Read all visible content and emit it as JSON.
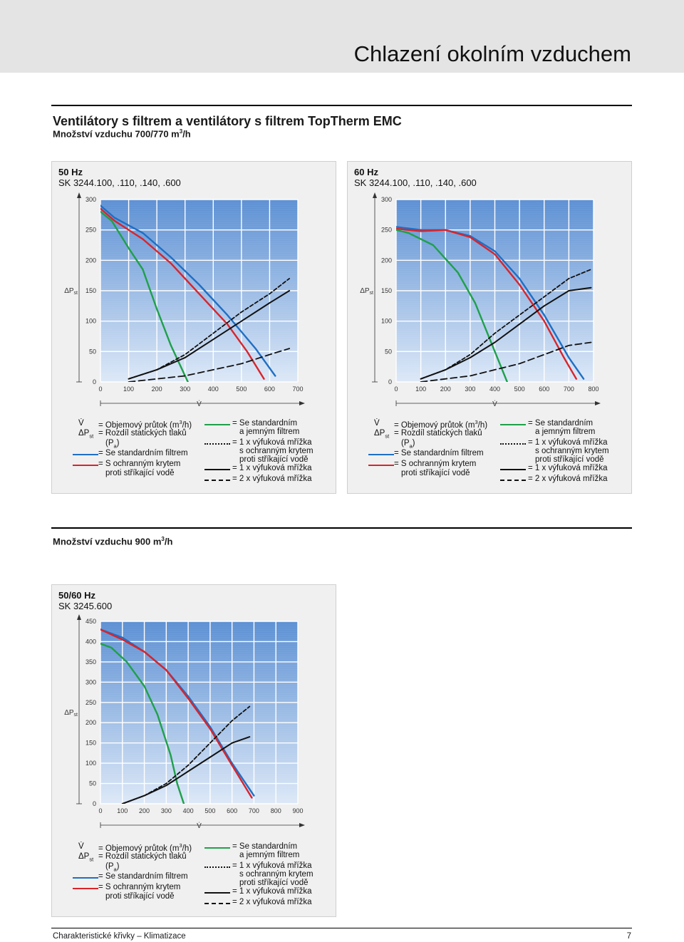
{
  "header": {
    "title": "Chlazení okolním vzduchem"
  },
  "section1": {
    "title": "Ventilátory s filtrem a ventilátory s filtrem TopTherm EMC",
    "subtitle_prefix": "Množství vzduchu 700/770 m",
    "subtitle_sup": "3",
    "subtitle_suffix": "/h"
  },
  "section2": {
    "subtitle_prefix": "Množství vzduchu 900 m",
    "subtitle_sup": "3",
    "subtitle_suffix": "/h"
  },
  "legend": {
    "v_sym": "V̇",
    "v_text_prefix": "= Objemový průtok (m",
    "v_text_sup": "3",
    "v_text_suffix": "/h)",
    "dp_sym_main": "ΔP",
    "dp_sym_sub": "st",
    "dp_text": "= Rozdíl statických tlaků",
    "pa_text_prefix": "(P",
    "pa_text_sub": "a",
    "pa_text_suffix": ")",
    "blue_text": "= Se standardním filtrem",
    "red_text_1": "= S ochranným krytem",
    "red_text_2": "proti stříkající vodě",
    "green_text_1": "= Se standardním",
    "green_text_2": "a jemným filtrem",
    "dotted_text_1": "= 1 x výfuková mřížka",
    "dotted_text_2": "s ochranným krytem",
    "dotted_text_3": "proti stříkající vodě",
    "solid_text": "= 1 x výfuková mřížka",
    "dashed_text": "= 2 x výfuková mřížka"
  },
  "colors": {
    "blue": "#1f6fc5",
    "red": "#d9242b",
    "green": "#1fa04a",
    "black": "#111111",
    "plot_top": "#5b8fd3",
    "plot_bottom": "#dce8f7"
  },
  "footer": {
    "left": "Charakteristické křivky – Klimatizace",
    "right": "7"
  },
  "chart_data": [
    {
      "type": "line",
      "title_line1": "50 Hz",
      "title_line2": "SK 3244.100, .110, .140, .600",
      "xlabel": "V̇",
      "ylabel_main": "ΔP",
      "ylabel_sub": "st",
      "xlim": [
        0,
        700
      ],
      "ylim": [
        0,
        300
      ],
      "xticks": [
        0,
        100,
        200,
        300,
        400,
        500,
        600,
        700
      ],
      "yticks": [
        0,
        50,
        100,
        150,
        200,
        250,
        300
      ],
      "series": [
        {
          "style": "blue",
          "points": [
            [
              0,
              290
            ],
            [
              50,
              270
            ],
            [
              150,
              245
            ],
            [
              250,
              205
            ],
            [
              350,
              160
            ],
            [
              450,
              110
            ],
            [
              550,
              55
            ],
            [
              620,
              10
            ]
          ]
        },
        {
          "style": "red",
          "points": [
            [
              0,
              285
            ],
            [
              50,
              265
            ],
            [
              150,
              235
            ],
            [
              250,
              195
            ],
            [
              350,
              145
            ],
            [
              450,
              95
            ],
            [
              520,
              50
            ],
            [
              580,
              5
            ]
          ]
        },
        {
          "style": "green",
          "points": [
            [
              0,
              280
            ],
            [
              40,
              265
            ],
            [
              100,
              220
            ],
            [
              150,
              185
            ],
            [
              200,
              120
            ],
            [
              250,
              60
            ],
            [
              310,
              0
            ]
          ]
        },
        {
          "style": "dotted",
          "points": [
            [
              100,
              5
            ],
            [
              200,
              20
            ],
            [
              300,
              45
            ],
            [
              400,
              80
            ],
            [
              500,
              115
            ],
            [
              600,
              145
            ],
            [
              670,
              170
            ]
          ]
        },
        {
          "style": "solid",
          "points": [
            [
              100,
              5
            ],
            [
              200,
              20
            ],
            [
              300,
              40
            ],
            [
              400,
              70
            ],
            [
              500,
              100
            ],
            [
              600,
              130
            ],
            [
              670,
              150
            ]
          ]
        },
        {
          "style": "dashed",
          "points": [
            [
              100,
              0
            ],
            [
              200,
              5
            ],
            [
              300,
              10
            ],
            [
              400,
              20
            ],
            [
              500,
              30
            ],
            [
              600,
              45
            ],
            [
              670,
              55
            ]
          ]
        }
      ]
    },
    {
      "type": "line",
      "title_line1": "60 Hz",
      "title_line2": "SK 3244.100, .110, .140, .600",
      "xlabel": "V̇",
      "ylabel_main": "ΔP",
      "ylabel_sub": "st",
      "xlim": [
        0,
        800
      ],
      "ylim": [
        0,
        300
      ],
      "xticks": [
        0,
        100,
        200,
        300,
        400,
        500,
        600,
        700,
        800
      ],
      "yticks": [
        0,
        50,
        100,
        150,
        200,
        250,
        300
      ],
      "series": [
        {
          "style": "blue",
          "points": [
            [
              0,
              255
            ],
            [
              100,
              250
            ],
            [
              200,
              250
            ],
            [
              300,
              240
            ],
            [
              400,
              215
            ],
            [
              500,
              170
            ],
            [
              600,
              110
            ],
            [
              700,
              40
            ],
            [
              760,
              5
            ]
          ]
        },
        {
          "style": "red",
          "points": [
            [
              0,
              252
            ],
            [
              100,
              248
            ],
            [
              200,
              250
            ],
            [
              300,
              238
            ],
            [
              400,
              210
            ],
            [
              500,
              160
            ],
            [
              600,
              100
            ],
            [
              680,
              40
            ],
            [
              730,
              5
            ]
          ]
        },
        {
          "style": "green",
          "points": [
            [
              0,
              250
            ],
            [
              50,
              245
            ],
            [
              150,
              225
            ],
            [
              250,
              180
            ],
            [
              320,
              130
            ],
            [
              380,
              70
            ],
            [
              450,
              0
            ]
          ]
        },
        {
          "style": "dotted",
          "points": [
            [
              100,
              5
            ],
            [
              200,
              20
            ],
            [
              300,
              45
            ],
            [
              400,
              80
            ],
            [
              500,
              110
            ],
            [
              600,
              140
            ],
            [
              700,
              170
            ],
            [
              790,
              185
            ]
          ]
        },
        {
          "style": "solid",
          "points": [
            [
              100,
              5
            ],
            [
              200,
              20
            ],
            [
              300,
              40
            ],
            [
              400,
              65
            ],
            [
              500,
              95
            ],
            [
              600,
              125
            ],
            [
              700,
              150
            ],
            [
              790,
              155
            ]
          ]
        },
        {
          "style": "dashed",
          "points": [
            [
              100,
              0
            ],
            [
              200,
              5
            ],
            [
              300,
              10
            ],
            [
              400,
              20
            ],
            [
              500,
              30
            ],
            [
              600,
              45
            ],
            [
              700,
              60
            ],
            [
              790,
              65
            ]
          ]
        }
      ]
    },
    {
      "type": "line",
      "title_line1": "50/60 Hz",
      "title_line2": "SK 3245.600",
      "xlabel": "V̇",
      "ylabel_main": "ΔP",
      "ylabel_sub": "st",
      "xlim": [
        0,
        900
      ],
      "ylim": [
        0,
        450
      ],
      "xticks": [
        0,
        100,
        200,
        300,
        400,
        500,
        600,
        700,
        800,
        900
      ],
      "yticks": [
        0,
        50,
        100,
        150,
        200,
        250,
        300,
        350,
        400,
        450
      ],
      "series": [
        {
          "style": "blue",
          "points": [
            [
              0,
              430
            ],
            [
              100,
              410
            ],
            [
              200,
              375
            ],
            [
              300,
              330
            ],
            [
              400,
              265
            ],
            [
              500,
              190
            ],
            [
              600,
              100
            ],
            [
              700,
              20
            ]
          ]
        },
        {
          "style": "red",
          "points": [
            [
              0,
              430
            ],
            [
              100,
              405
            ],
            [
              200,
              375
            ],
            [
              300,
              330
            ],
            [
              400,
              260
            ],
            [
              500,
              185
            ],
            [
              600,
              95
            ],
            [
              690,
              15
            ]
          ]
        },
        {
          "style": "green",
          "points": [
            [
              0,
              395
            ],
            [
              50,
              385
            ],
            [
              120,
              350
            ],
            [
              200,
              290
            ],
            [
              260,
              220
            ],
            [
              320,
              120
            ],
            [
              350,
              50
            ],
            [
              380,
              0
            ]
          ]
        },
        {
          "style": "dotted",
          "points": [
            [
              100,
              0
            ],
            [
              200,
              20
            ],
            [
              300,
              50
            ],
            [
              400,
              95
            ],
            [
              500,
              150
            ],
            [
              600,
              205
            ],
            [
              680,
              240
            ]
          ]
        },
        {
          "style": "solid",
          "points": [
            [
              100,
              0
            ],
            [
              200,
              20
            ],
            [
              300,
              45
            ],
            [
              400,
              80
            ],
            [
              500,
              115
            ],
            [
              600,
              150
            ],
            [
              680,
              165
            ]
          ]
        }
      ]
    }
  ]
}
